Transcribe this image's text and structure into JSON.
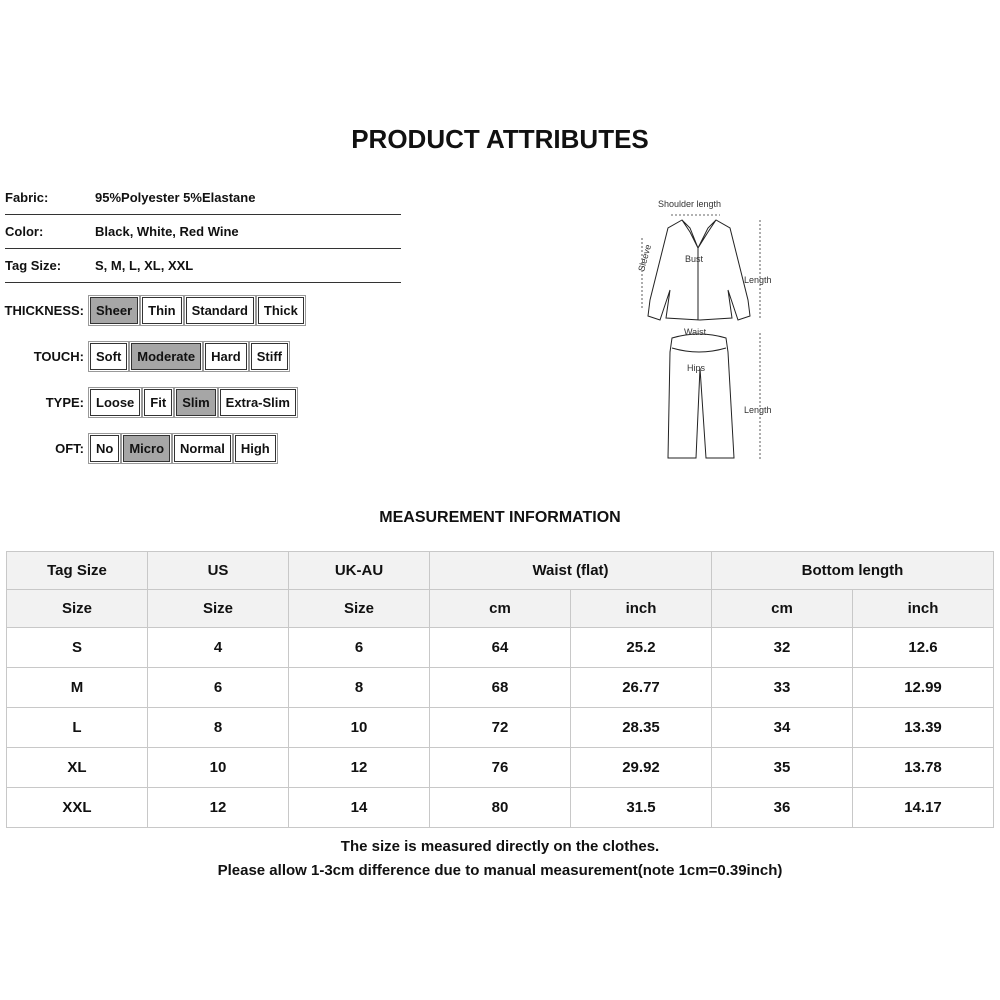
{
  "title": "PRODUCT ATTRIBUTES",
  "attributes": [
    {
      "label": "Fabric:",
      "value": "95%Polyester 5%Elastane"
    },
    {
      "label": "Color:",
      "value": "Black,  White,  Red Wine"
    },
    {
      "label": "Tag Size:",
      "value": "S,  M,  L,  XL,  XXL"
    }
  ],
  "groups": [
    {
      "label": "THICKNESS:",
      "options": [
        "Sheer",
        "Thin",
        "Standard",
        "Thick"
      ],
      "selected": "Sheer"
    },
    {
      "label": "TOUCH:",
      "options": [
        "Soft",
        "Moderate",
        "Hard",
        "Stiff"
      ],
      "selected": "Moderate"
    },
    {
      "label": "TYPE:",
      "options": [
        "Loose",
        "Fit",
        "Slim",
        "Extra-Slim"
      ],
      "selected": "Slim"
    },
    {
      "label": "OFT:",
      "options": [
        "No",
        "Micro",
        "Normal",
        "High"
      ],
      "selected": "Micro"
    }
  ],
  "diagram": {
    "shoulder": "Shoulder length",
    "sleeve": "Sleeve",
    "bust": "Bust",
    "top_length": "Length",
    "waist": "Waist",
    "hips": "Hips",
    "bottom_length": "Length"
  },
  "measurement_title": "MEASUREMENT INFORMATION",
  "table": {
    "header1": [
      {
        "t": "Tag Size",
        "span": 1
      },
      {
        "t": "US",
        "span": 1
      },
      {
        "t": "UK-AU",
        "span": 1
      },
      {
        "t": "Waist  (flat)",
        "span": 2
      },
      {
        "t": "Bottom length",
        "span": 2
      }
    ],
    "header2": [
      "Size",
      "Size",
      "Size",
      "cm",
      "inch",
      "cm",
      "inch"
    ],
    "rows": [
      [
        "S",
        "4",
        "6",
        "64",
        "25.2",
        "32",
        "12.6"
      ],
      [
        "M",
        "6",
        "8",
        "68",
        "26.77",
        "33",
        "12.99"
      ],
      [
        "L",
        "8",
        "10",
        "72",
        "28.35",
        "34",
        "13.39"
      ],
      [
        "XL",
        "10",
        "12",
        "76",
        "29.92",
        "35",
        "13.78"
      ],
      [
        "XXL",
        "12",
        "14",
        "80",
        "31.5",
        "36",
        "14.17"
      ]
    ]
  },
  "notes": [
    "The size is measured directly on the clothes.",
    "Please allow 1-3cm difference due to manual measurement(note 1cm=0.39inch)"
  ],
  "colors": {
    "selected": "#a6a6a6",
    "header_bg": "#f2f2f2"
  }
}
